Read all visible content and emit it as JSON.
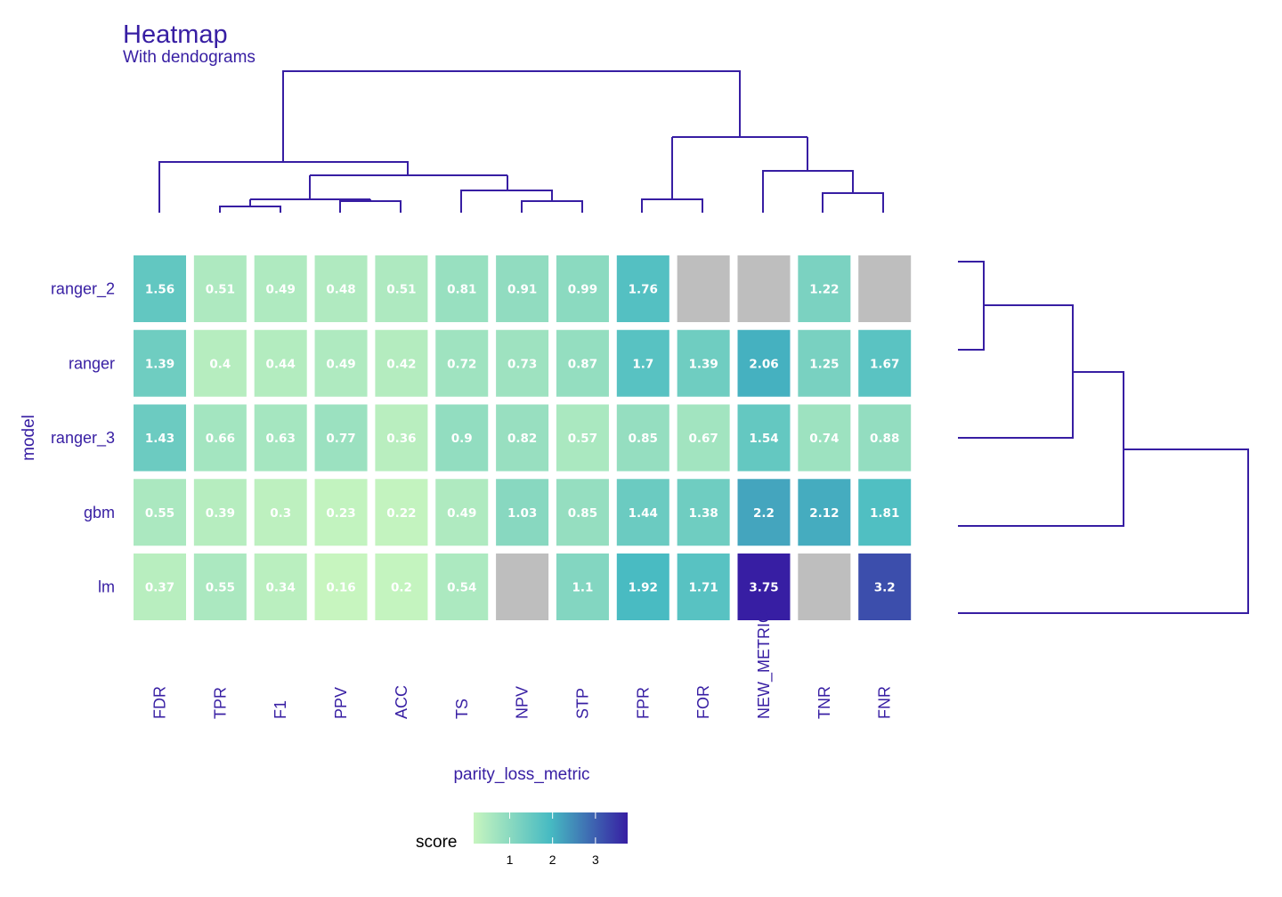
{
  "chart_data": {
    "type": "heatmap",
    "title": "Heatmap",
    "subtitle": "With dendograms",
    "xlabel": "parity_loss_metric",
    "ylabel": "model",
    "columns": [
      "FDR",
      "TPR",
      "F1",
      "PPV",
      "ACC",
      "TS",
      "NPV",
      "STP",
      "FPR",
      "FOR",
      "NEW_METRIC",
      "TNR",
      "FNR"
    ],
    "rows": [
      "ranger_2",
      "ranger",
      "ranger_3",
      "gbm",
      "lm"
    ],
    "values": [
      [
        1.56,
        0.51,
        0.49,
        0.48,
        0.51,
        0.81,
        0.91,
        0.99,
        1.76,
        null,
        null,
        1.22,
        null
      ],
      [
        1.39,
        0.4,
        0.44,
        0.49,
        0.42,
        0.72,
        0.73,
        0.87,
        1.7,
        1.39,
        2.06,
        1.25,
        1.67
      ],
      [
        1.43,
        0.66,
        0.63,
        0.77,
        0.36,
        0.9,
        0.82,
        0.57,
        0.85,
        0.67,
        1.54,
        0.74,
        0.88
      ],
      [
        0.55,
        0.39,
        0.3,
        0.23,
        0.22,
        0.49,
        1.03,
        0.85,
        1.44,
        1.38,
        2.2,
        2.12,
        1.81
      ],
      [
        0.37,
        0.55,
        0.34,
        0.16,
        0.2,
        0.54,
        null,
        1.1,
        1.92,
        1.71,
        3.75,
        null,
        3.2
      ]
    ],
    "missing_color": "#bebebe",
    "legend": {
      "title": "score",
      "ticks": [
        1,
        2,
        3
      ],
      "range": [
        0.16,
        3.75
      ],
      "placement": "bottom",
      "colors": [
        "#c7f5bf",
        "#46bac2",
        "#371ea3"
      ]
    },
    "dendrograms": [
      "columns (top)",
      "rows (right)"
    ]
  }
}
